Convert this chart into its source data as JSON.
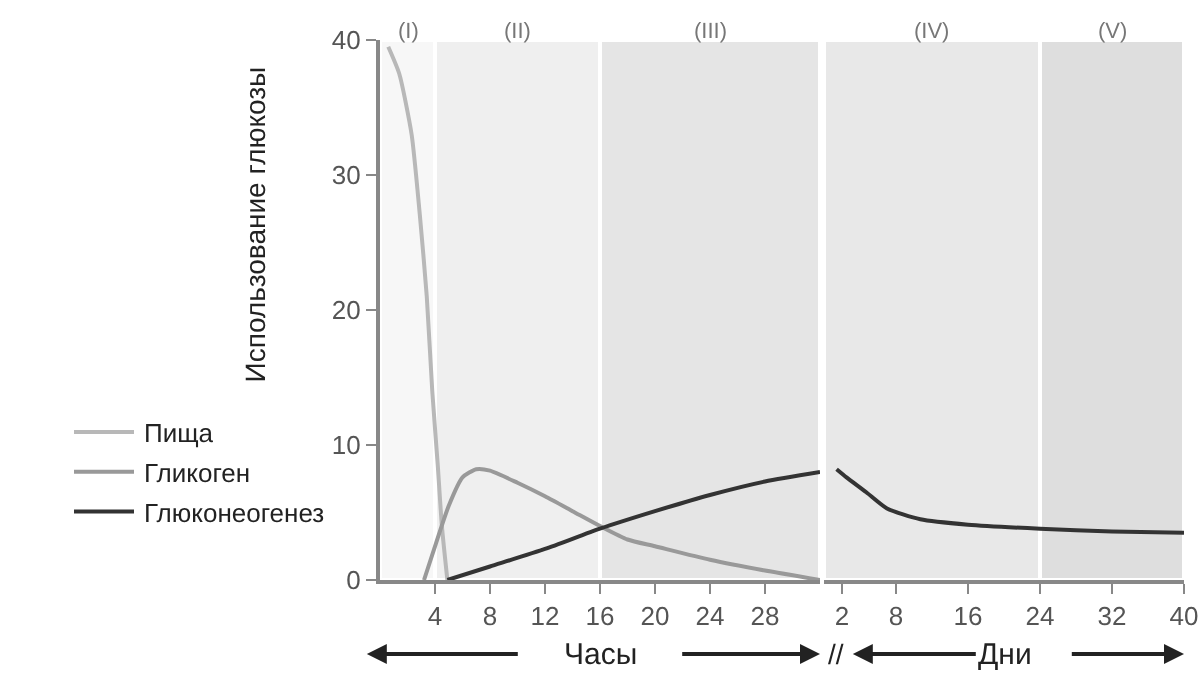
{
  "chart_data": [
    {
      "type": "line",
      "ylabel": "Использование глюкозы",
      "xlabel": "Часы",
      "xlim": [
        0,
        32
      ],
      "xticks": [
        4,
        8,
        12,
        16,
        20,
        24,
        28
      ],
      "ylim": [
        0,
        40
      ],
      "yticks": [
        0,
        10,
        20,
        30,
        40
      ],
      "grid": false,
      "legend": "left",
      "marker": "none",
      "line_style": "solid",
      "bands": [
        {
          "axis": "x",
          "from": 0,
          "to": 4,
          "label": "(I)",
          "color": "#f7f7f7"
        },
        {
          "axis": "x",
          "from": 4,
          "to": 16,
          "label": "(II)",
          "color": "#efefef"
        },
        {
          "axis": "x",
          "from": 16,
          "to": 32,
          "label": "(III)",
          "color": "#e5e5e5"
        }
      ],
      "series": [
        {
          "name": "Пища",
          "color": "#b8b8b8",
          "x": [
            0.6,
            1.4,
            2.3,
            2.9,
            3.4,
            3.8,
            4.2,
            4.5,
            4.9
          ],
          "values": [
            39.5,
            37.5,
            33,
            27,
            21,
            14,
            8.5,
            4,
            0
          ]
        },
        {
          "name": "Гликоген",
          "color": "#999999",
          "x": [
            3.2,
            4,
            5,
            6,
            7,
            8,
            10,
            12,
            14,
            16,
            18,
            20,
            24,
            28,
            32
          ],
          "values": [
            0,
            2.5,
            5.5,
            7.6,
            8.2,
            8.1,
            7.2,
            6.2,
            5.1,
            4,
            3,
            2.5,
            1.5,
            0.7,
            0
          ]
        },
        {
          "name": "Глюконеогенез",
          "color": "#333333",
          "x": [
            4.9,
            8,
            12,
            16,
            20,
            24,
            28,
            32
          ],
          "values": [
            0,
            1,
            2.3,
            3.8,
            5.1,
            6.3,
            7.3,
            8
          ]
        }
      ]
    },
    {
      "type": "line",
      "xlabel": "Дни",
      "xlim": [
        0,
        40
      ],
      "xticks": [
        2,
        8,
        16,
        24,
        32,
        40
      ],
      "ylim": [
        0,
        40
      ],
      "tick_labels": "x",
      "grid": false,
      "marker": "none",
      "line_style": "solid",
      "annotations": [
        "//"
      ],
      "bands": [
        {
          "axis": "x",
          "from": 0,
          "to": 24,
          "label": "(IV)",
          "color": "#e8e8e8"
        },
        {
          "axis": "x",
          "from": 24,
          "to": 40,
          "label": "(V)",
          "color": "#dedede"
        }
      ],
      "series": [
        {
          "color": "#333333",
          "x": [
            1.4,
            2.5,
            4.7,
            7,
            10.7,
            16,
            24,
            32,
            40
          ],
          "values": [
            8.2,
            7.6,
            6.5,
            5.3,
            4.5,
            4.1,
            3.8,
            3.6,
            3.5
          ]
        }
      ]
    }
  ]
}
